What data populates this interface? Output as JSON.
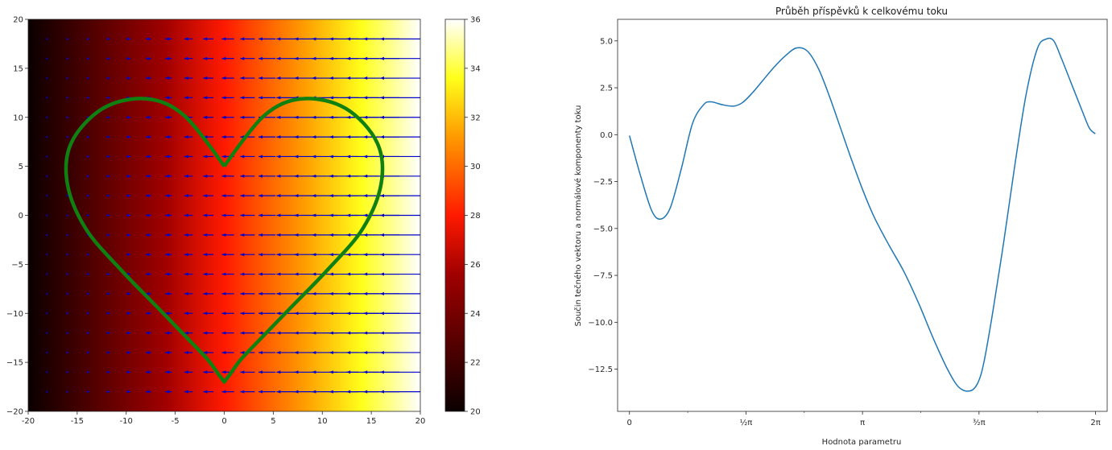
{
  "colors": {
    "heart": "#108010",
    "arrows": "#0000cc",
    "line": "#1f77b4",
    "axis": "#262626"
  },
  "chart_data": [
    {
      "type": "heatmap",
      "subtype": "vector-field-with-curve",
      "title": "",
      "xlabel": "",
      "ylabel": "",
      "xlim": [
        -20,
        20
      ],
      "ylim": [
        -20,
        20
      ],
      "xticks": [
        -20,
        -15,
        -10,
        -5,
        0,
        5,
        10,
        15,
        20
      ],
      "yticks": [
        -20,
        -15,
        -10,
        -5,
        0,
        5,
        10,
        15,
        20
      ],
      "colormap": "hot",
      "colorbar": {
        "range": [
          20,
          36
        ],
        "ticks": [
          20,
          22,
          24,
          26,
          28,
          30,
          32,
          34,
          36
        ]
      },
      "field_value_at_x": {
        "x": [
          -20,
          20
        ],
        "value": [
          20,
          36
        ]
      },
      "arrows": {
        "direction": "negative-x",
        "grid_x_range": [
          -18,
          20
        ],
        "grid_y_range": [
          -18,
          18
        ],
        "grid_count": [
          19,
          19
        ]
      },
      "curve": {
        "name": "heart",
        "x": [
          0,
          4.1,
          8.0,
          12.4,
          15.6,
          16.0,
          14.1,
          10.5,
          6.8,
          3.7,
          1.7,
          0.6,
          0,
          -0.6,
          -1.7,
          -3.7,
          -6.8,
          -10.5,
          -14.1,
          -16.0,
          -15.6,
          -12.4,
          -8.0,
          -4.1,
          0
        ],
        "y": [
          5,
          10.2,
          11.9,
          10.9,
          7.4,
          3.2,
          -1.4,
          -5.6,
          -9.4,
          -12.6,
          -14.7,
          -16.2,
          -17,
          -16.2,
          -14.7,
          -12.6,
          -9.4,
          -5.6,
          -1.4,
          3.2,
          7.4,
          10.9,
          11.9,
          10.2,
          5
        ]
      }
    },
    {
      "type": "line",
      "title": "Průběh příspěvků k celkovému toku",
      "xlabel": "Hodnota parametru",
      "ylabel": "Součin tečného vektoru a normálové komponenty toku",
      "xlim": [
        -0.16,
        6.44
      ],
      "ylim": [
        -14.75,
        6.15
      ],
      "xticks": [
        {
          "value": 0,
          "label": "0"
        },
        {
          "value": 1.5708,
          "label": "½π"
        },
        {
          "value": 3.1416,
          "label": "π"
        },
        {
          "value": 4.7124,
          "label": "³⁄₂π"
        },
        {
          "value": 6.2832,
          "label": "2π"
        }
      ],
      "minor_xticks": [
        0.7854,
        2.3562,
        3.927,
        5.4978
      ],
      "yticks": [
        5.0,
        2.5,
        0.0,
        -2.5,
        -5.0,
        -7.5,
        -10.0,
        -12.5
      ],
      "ytick_labels": [
        "5.0",
        "2.5",
        "0.0",
        "−2.5",
        "−5.0",
        "−7.5",
        "−10.0",
        "−12.5"
      ],
      "x": [
        0,
        0.15,
        0.3,
        0.42,
        0.55,
        0.7,
        0.85,
        1.0,
        1.1,
        1.25,
        1.4,
        1.52,
        1.65,
        1.8,
        1.95,
        2.1,
        2.25,
        2.4,
        2.55,
        2.7,
        2.85,
        3.0,
        3.15,
        3.3,
        3.5,
        3.7,
        3.9,
        4.1,
        4.3,
        4.45,
        4.6,
        4.7,
        4.78,
        4.9,
        5.05,
        5.2,
        5.35,
        5.5,
        5.62,
        5.72,
        5.82,
        5.95,
        6.1,
        6.2,
        6.28
      ],
      "y": [
        -0.05,
        -2.2,
        -4.05,
        -4.5,
        -3.9,
        -1.8,
        0.6,
        1.6,
        1.75,
        1.6,
        1.52,
        1.7,
        2.2,
        2.9,
        3.6,
        4.2,
        4.62,
        4.45,
        3.5,
        2.0,
        0.3,
        -1.4,
        -3.0,
        -4.4,
        -5.9,
        -7.3,
        -9.0,
        -10.9,
        -12.6,
        -13.5,
        -13.65,
        -13.2,
        -12.1,
        -9.4,
        -5.6,
        -1.5,
        2.2,
        4.6,
        5.1,
        5.0,
        4.1,
        2.8,
        1.3,
        0.35,
        0.05
      ]
    }
  ]
}
